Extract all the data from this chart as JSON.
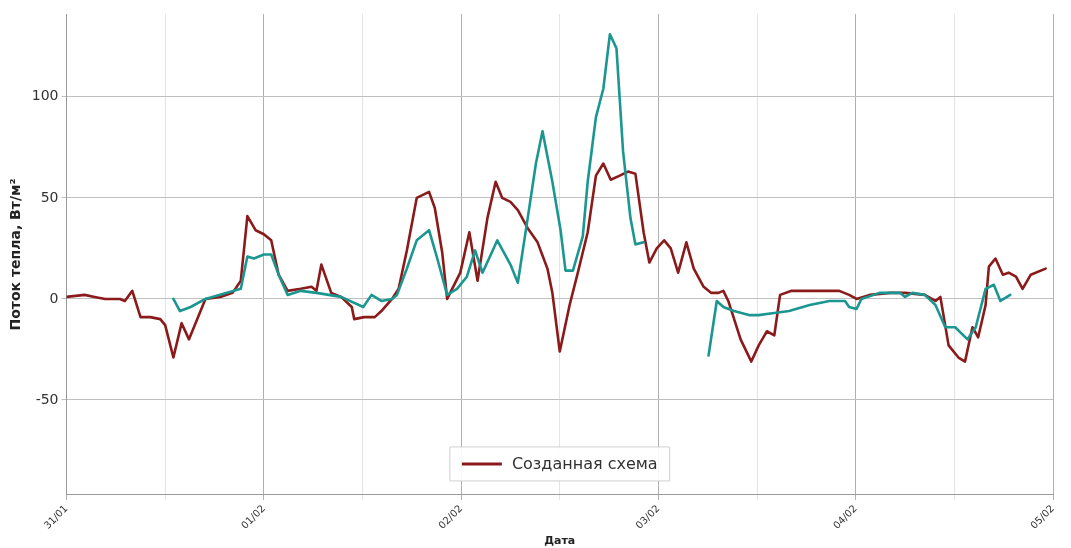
{
  "chart_data": {
    "type": "line",
    "xlabel": "Дата",
    "ylabel": "Поток тепла, Вт/м²",
    "xlim": [
      "--01-31",
      "--02-05"
    ],
    "xticks": [
      {
        "value": "--01-31",
        "label": "31/01"
      },
      {
        "value": "--01-31T12:00",
        "label": null
      },
      {
        "value": "--02-01",
        "label": "01/02"
      },
      {
        "value": "--02-01T12:00",
        "label": null
      },
      {
        "value": "--02-02",
        "label": "02/02"
      },
      {
        "value": "--02-02T12:00",
        "label": null
      },
      {
        "value": "--02-03",
        "label": "03/02"
      },
      {
        "value": "--02-03T12:00",
        "label": null
      },
      {
        "value": "--02-04",
        "label": "04/02"
      },
      {
        "value": "--02-04T12:00",
        "label": null
      },
      {
        "value": "--02-05",
        "label": "05/02"
      }
    ],
    "ylim": [
      -97,
      141
    ],
    "yticks": [
      -50,
      0,
      50,
      100
    ],
    "grid": true,
    "legend": "bottom",
    "marker": "none",
    "line_style": "solid",
    "series": [
      {
        "color": "#1b9690",
        "x": [
          "--01-31T13:00",
          "--01-31T13:48",
          "--01-31T15:06",
          "--01-31T16:54",
          "--01-31T21:12",
          "--01-31T22:00",
          "--01-31T22:48",
          "--02-01T00:00",
          "--02-01T00:54",
          "--02-01T01:48",
          "--02-01T02:54",
          "--02-01T04:30",
          "--02-01T06:24",
          "--02-01T09:24",
          "--02-01T12:06",
          "--02-01T13:06",
          "--02-01T14:18",
          "--02-01T15:36",
          "--02-01T16:12",
          "--02-01T17:24",
          "--02-01T18:36",
          "--02-01T20:06",
          "--02-01T21:06",
          "--02-01T22:18",
          "--02-01T23:30",
          "--02-02T00:42",
          "--02-02T01:42",
          "--02-02T02:36",
          "--02-02T03:24",
          "--02-02T04:24",
          "--02-02T06:00",
          "--02-02T06:54",
          "--02-02T08:06",
          "--02-02T09:06",
          "--02-02T09:54",
          "--02-02T11:06",
          "--02-02T12:06",
          "--02-02T12:42",
          "--02-02T13:36",
          "--02-02T14:48",
          "--02-02T15:24",
          "--02-02T16:24",
          "--02-02T17:18",
          "--02-02T18:06",
          "--02-02T18:54",
          "--02-02T19:42",
          "--02-02T20:36",
          "--02-02T21:12",
          "--02-02T22:12",
          "--02-03T02:00",
          "--02-03T06:06",
          "--02-03T07:06",
          "--02-03T07:54",
          "--02-03T09:12",
          "--02-03T11:00",
          "--02-03T12:12",
          "--02-03T14:06",
          "--02-03T15:54",
          "--02-03T18:24",
          "--02-03T20:48",
          "--02-03T22:42",
          "--02-03T23:12",
          "--02-04T00:06",
          "--02-04T00:42",
          "--02-04T02:54",
          "--02-04T05:24",
          "--02-04T06:00",
          "--02-04T06:54",
          "--02-04T08:24",
          "--02-04T09:42",
          "--02-04T10:54",
          "--02-04T12:06",
          "--02-04T13:36",
          "--02-04T14:36",
          "--02-04T15:48",
          "--02-04T16:48",
          "--02-04T17:36",
          "--02-04T18:48"
        ],
        "values": [
          0,
          -6,
          -4,
          0,
          5,
          21,
          20,
          22,
          22,
          12,
          2,
          4,
          3,
          1,
          -4,
          2,
          -1,
          0,
          2,
          15,
          29,
          34,
          20,
          2,
          5,
          11,
          24,
          13,
          20,
          29,
          17,
          8,
          40,
          67,
          83,
          58,
          34,
          14,
          14,
          31,
          58,
          90,
          104,
          131,
          124,
          73,
          40,
          27,
          28,
          null,
          -28,
          -1,
          -4,
          -6,
          -8,
          -8,
          -7,
          -6,
          -3,
          -1,
          -1,
          -4,
          -5,
          0,
          3,
          3,
          1,
          3,
          2,
          -3,
          -14,
          -14,
          -20,
          -14,
          5,
          7,
          -1,
          2
        ]
      },
      {
        "name": "Созданная схема",
        "color": "#8b1a1a",
        "x": [
          "--01-31T00:00",
          "--01-31T02:12",
          "--01-31T03:24",
          "--01-31T04:42",
          "--01-31T06:30",
          "--01-31T07:06",
          "--01-31T08:00",
          "--01-31T09:00",
          "--01-31T10:12",
          "--01-31T11:24",
          "--01-31T12:00",
          "--01-31T13:00",
          "--01-31T14:00",
          "--01-31T14:54",
          "--01-31T16:54",
          "--01-31T18:42",
          "--01-31T20:12",
          "--01-31T21:12",
          "--01-31T22:00",
          "--01-31T23:00",
          "--02-01T00:00",
          "--02-01T00:54",
          "--02-01T01:48",
          "--02-01T02:54",
          "--02-01T04:30",
          "--02-01T05:48",
          "--02-01T06:24",
          "--02-01T07:00",
          "--02-01T08:12",
          "--02-01T09:24",
          "--02-01T10:42",
          "--02-01T11:00",
          "--02-01T12:12",
          "--02-01T13:30",
          "--02-01T14:18",
          "--02-01T15:36",
          "--02-01T16:24",
          "--02-01T17:24",
          "--02-01T18:36",
          "--02-01T20:06",
          "--02-01T20:48",
          "--02-01T21:42",
          "--02-01T22:18",
          "--02-01T23:54",
          "--02-02T01:00",
          "--02-02T02:00",
          "--02-02T03:12",
          "--02-02T04:12",
          "--02-02T05:00",
          "--02-02T06:00",
          "--02-02T06:54",
          "--02-02T08:06",
          "--02-02T09:18",
          "--02-02T10:30",
          "--02-02T11:06",
          "--02-02T12:00",
          "--02-02T13:12",
          "--02-02T14:12",
          "--02-02T15:24",
          "--02-02T16:24",
          "--02-02T17:18",
          "--02-02T18:12",
          "--02-02T19:18",
          "--02-02T20:18",
          "--02-02T21:12",
          "--02-02T22:12",
          "--02-02T22:54",
          "--02-02T23:48",
          "--02-03T00:42",
          "--02-03T01:30",
          "--02-03T02:24",
          "--02-03T03:24",
          "--02-03T04:18",
          "--02-03T05:30",
          "--02-03T06:24",
          "--02-03T07:18",
          "--02-03T07:54",
          "--02-03T08:30",
          "--02-03T10:00",
          "--02-03T11:18",
          "--02-03T12:12",
          "--02-03T13:12",
          "--02-03T14:06",
          "--02-03T14:48",
          "--02-03T16:12",
          "--02-03T18:24",
          "--02-03T22:00",
          "--02-03T23:12",
          "--02-04T00:06",
          "--02-04T01:42",
          "--02-04T04:12",
          "--02-04T06:00",
          "--02-04T08:24",
          "--02-04T09:42",
          "--02-04T10:18",
          "--02-04T11:18",
          "--02-04T12:30",
          "--02-04T13:18",
          "--02-04T14:12",
          "--02-04T14:54",
          "--02-04T15:48",
          "--02-04T16:12",
          "--02-04T17:00",
          "--02-04T17:54",
          "--02-04T18:36",
          "--02-04T19:30",
          "--02-04T20:18",
          "--02-04T21:18",
          "--02-04T23:06"
        ],
        "values": [
          1,
          2,
          1,
          0,
          0,
          -1,
          4,
          -9,
          -9,
          -10,
          -13,
          -29,
          -12,
          -20,
          0,
          1,
          3,
          9,
          41,
          34,
          32,
          29,
          12,
          4,
          5,
          6,
          4,
          17,
          3,
          1,
          -4,
          -10,
          -9,
          -9,
          -6,
          0,
          5,
          24,
          50,
          53,
          45,
          23,
          0,
          13,
          33,
          9,
          40,
          58,
          50,
          48,
          44,
          35,
          28,
          15,
          3,
          -26,
          -3,
          13,
          33,
          61,
          67,
          59,
          61,
          63,
          62,
          33,
          18,
          25,
          29,
          25,
          13,
          28,
          15,
          6,
          3,
          3,
          4,
          -1,
          -20,
          -31,
          -23,
          -16,
          -18,
          2,
          4,
          4,
          4,
          2,
          0,
          2,
          3,
          3,
          2,
          -1,
          1,
          -23,
          -29,
          -31,
          -14,
          -19,
          -3,
          16,
          20,
          12,
          13,
          11,
          5,
          12,
          15
        ]
      }
    ]
  }
}
